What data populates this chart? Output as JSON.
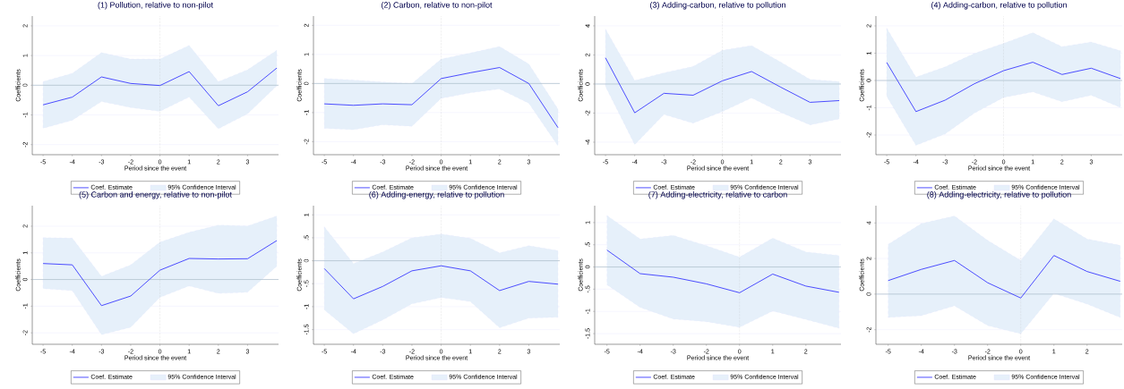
{
  "chart_data": [
    {
      "type": "line",
      "title": "(1) Pollution, relative to non-pilot",
      "xlabel": "Period since the event",
      "ylabel": "Coefficients",
      "categories": [
        "-5",
        "-4",
        "-3",
        "-2",
        "0",
        "1",
        "2",
        "3",
        null
      ],
      "ylim": [
        -2.34,
        2.33
      ],
      "yticks": [
        -2,
        -1,
        0,
        1,
        2
      ],
      "grid": "y",
      "legend": "bottom",
      "ref_lines": [
        {
          "axis": "x",
          "value": "0",
          "color": "#a8a8a8",
          "line_style": "dotted"
        },
        {
          "axis": "y",
          "value": 0,
          "color": "#9fb4c0",
          "line_style": "solid"
        }
      ],
      "series": [
        {
          "name": "Coef. Estimate",
          "color": "#3a3aff",
          "values": [
            -0.66,
            -0.4,
            0.28,
            0.06,
            -0.01,
            0.46,
            -0.69,
            -0.22,
            0.58
          ],
          "lower": [
            -1.45,
            -1.18,
            -0.55,
            -0.75,
            -0.88,
            -0.4,
            -1.47,
            -0.96,
            -0.02
          ],
          "upper": [
            0.12,
            0.4,
            1.1,
            0.88,
            0.88,
            1.34,
            0.12,
            0.52,
            1.18
          ]
        },
        {
          "name": "95% Confidence Interval",
          "type": "area",
          "color": "#e6f0fa",
          "values": [
            null,
            null,
            null,
            null,
            null,
            null,
            null,
            null,
            null
          ]
        }
      ]
    },
    {
      "type": "line",
      "title": "(2) Carbon, relative to non-pilot",
      "xlabel": "Period since the event",
      "ylabel": "Coefficients",
      "categories": [
        "-5",
        "-4",
        "-3",
        "-2",
        "0",
        "1",
        "2",
        "3",
        null
      ],
      "ylim": [
        -2.45,
        2.32
      ],
      "yticks": [
        -2,
        -1,
        0,
        1,
        2
      ],
      "grid": "y",
      "legend": "bottom",
      "ref_lines": [
        {
          "axis": "x",
          "value": "0",
          "color": "#a8a8a8",
          "line_style": "dotted"
        },
        {
          "axis": "y",
          "value": 0,
          "color": "#9fb4c0",
          "line_style": "solid"
        }
      ],
      "series": [
        {
          "name": "Coef. Estimate",
          "color": "#3a3aff",
          "values": [
            -0.7,
            -0.75,
            -0.7,
            -0.73,
            0.17,
            0.37,
            0.55,
            0,
            -1.52
          ],
          "lower": [
            -1.54,
            -1.59,
            -1.42,
            -1.47,
            -0.51,
            -0.32,
            -0.19,
            -0.68,
            -2.15
          ],
          "upper": [
            0.17,
            0.12,
            0.05,
            0.0,
            0.84,
            1.05,
            1.27,
            0.67,
            -0.88
          ]
        },
        {
          "name": "95% Confidence Interval",
          "type": "area",
          "color": "#e6f0fa",
          "values": [
            null,
            null,
            null,
            null,
            null,
            null,
            null,
            null,
            null
          ]
        }
      ]
    },
    {
      "type": "line",
      "title": "(3) Adding-carbon, relative to pollution",
      "xlabel": "Period since the event",
      "ylabel": "Coefficients",
      "categories": [
        "-5",
        "-4",
        "-3",
        "-2",
        "0",
        "1",
        "2",
        "3",
        null
      ],
      "ylim": [
        -4.86,
        4.67
      ],
      "yticks": [
        -4,
        -2,
        0,
        2,
        4
      ],
      "grid": "y",
      "legend": "bottom",
      "ref_lines": [
        {
          "axis": "x",
          "value": "0",
          "color": "#a8a8a8",
          "line_style": "dotted"
        },
        {
          "axis": "y",
          "value": 0,
          "color": "#9fb4c0",
          "line_style": "solid"
        }
      ],
      "series": [
        {
          "name": "Coef. Estimate",
          "color": "#3a3aff",
          "values": [
            1.8,
            -1.98,
            -0.64,
            -0.77,
            0.22,
            0.86,
            -0.22,
            -1.26,
            -1.14
          ],
          "lower": [
            -0.17,
            -4.17,
            -2.1,
            -2.69,
            -1.9,
            -0.96,
            -1.95,
            -2.81,
            -2.4
          ],
          "upper": [
            3.78,
            0.25,
            0.77,
            1.21,
            2.32,
            2.64,
            1.51,
            0.32,
            0.17
          ]
        },
        {
          "name": "95% Confidence Interval",
          "type": "area",
          "color": "#e6f0fa",
          "values": [
            null,
            null,
            null,
            null,
            null,
            null,
            null,
            null,
            null
          ]
        }
      ]
    },
    {
      "type": "line",
      "title": "(4) Adding-carbon, relative to pollution",
      "xlabel": "Period since the event",
      "ylabel": "Coefficients",
      "categories": [
        "-5",
        "-4",
        "-3",
        "-2",
        "0",
        "1",
        "2",
        "3",
        null
      ],
      "ylim": [
        -2.72,
        2.36
      ],
      "yticks": [
        -2,
        -1,
        0,
        1,
        2
      ],
      "grid": "y",
      "legend": "bottom",
      "ref_lines": [
        {
          "axis": "x",
          "value": "0",
          "color": "#a8a8a8",
          "line_style": "dotted"
        },
        {
          "axis": "y",
          "value": 0,
          "color": "#9fb4c0",
          "line_style": "solid"
        }
      ],
      "series": [
        {
          "name": "Coef. Estimate",
          "color": "#3a3aff",
          "values": [
            0.66,
            -1.14,
            -0.72,
            -0.12,
            0.36,
            0.67,
            0.22,
            0.45,
            0.07
          ],
          "lower": [
            -0.58,
            -2.38,
            -1.96,
            -1.2,
            -0.62,
            -0.42,
            -0.78,
            -0.54,
            -0.99
          ],
          "upper": [
            1.92,
            0.12,
            0.5,
            0.99,
            1.36,
            1.75,
            1.24,
            1.41,
            1.09
          ]
        },
        {
          "name": "95% Confidence Interval",
          "type": "area",
          "color": "#e6f0fa",
          "values": [
            null,
            null,
            null,
            null,
            null,
            null,
            null,
            null,
            null
          ]
        }
      ]
    },
    {
      "type": "line",
      "title": "(5) Carbon and energy, relative to non-pilot",
      "xlabel": "Period since the event",
      "ylabel": "Coefficients",
      "categories": [
        "-5",
        "-4",
        "-3",
        "-2",
        "0",
        "1",
        "2",
        "3",
        null
      ],
      "ylim": [
        -2.43,
        2.77
      ],
      "yticks": [
        -2,
        -1,
        0,
        1,
        2
      ],
      "grid": "y",
      "legend": "bottom",
      "ref_lines": [
        {
          "axis": "x",
          "value": "0",
          "color": "#a8a8a8",
          "line_style": "dotted"
        },
        {
          "axis": "y",
          "value": 0,
          "color": "#9fb4c0",
          "line_style": "solid"
        }
      ],
      "series": [
        {
          "name": "Coef. Estimate",
          "color": "#3a3aff",
          "values": [
            0.6,
            0.55,
            -0.98,
            -0.62,
            0.35,
            0.79,
            0.77,
            0.78,
            1.46
          ],
          "lower": [
            -0.34,
            -0.42,
            -2.07,
            -1.79,
            -0.67,
            -0.24,
            -0.52,
            -0.48,
            0.5
          ],
          "upper": [
            1.57,
            1.55,
            0.12,
            0.55,
            1.4,
            1.77,
            2.04,
            2.01,
            2.38
          ]
        },
        {
          "name": "95% Confidence Interval",
          "type": "area",
          "color": "#e6f0fa",
          "values": [
            null,
            null,
            null,
            null,
            null,
            null,
            null,
            null,
            null
          ]
        }
      ]
    },
    {
      "type": "line",
      "title": "(6) Adding-energy, relative to pollution",
      "xlabel": "Period since the event",
      "ylabel": "Coefficients",
      "categories": [
        "-5",
        "-4",
        "-3",
        "-2",
        "0",
        "1",
        "2",
        "3",
        null
      ],
      "ylim": [
        -1.82,
        1.2
      ],
      "yticks": [
        {
          "value": -1.5,
          "label": "-1.5"
        },
        -1,
        {
          "value": -0.5,
          "label": "-.5"
        },
        0,
        {
          "value": 0.5,
          "label": ".5"
        },
        1
      ],
      "grid": "y",
      "legend": "bottom",
      "ref_lines": [
        {
          "axis": "x",
          "value": "0",
          "color": "#a8a8a8",
          "line_style": "dotted"
        },
        {
          "axis": "y",
          "value": 0,
          "color": "#9fb4c0",
          "line_style": "solid"
        }
      ],
      "series": [
        {
          "name": "Coef. Estimate",
          "color": "#3a3aff",
          "values": [
            -0.17,
            -0.83,
            -0.56,
            -0.22,
            -0.11,
            -0.22,
            -0.65,
            -0.45,
            -0.51
          ],
          "lower": [
            -1.07,
            -1.59,
            -1.29,
            -0.94,
            -0.8,
            -0.89,
            -1.46,
            -1.25,
            -1.23
          ],
          "upper": [
            0.74,
            -0.06,
            0.19,
            0.5,
            0.58,
            0.49,
            0.17,
            0.33,
            0.22
          ]
        },
        {
          "name": "95% Confidence Interval",
          "type": "area",
          "color": "#e6f0fa",
          "values": [
            null,
            null,
            null,
            null,
            null,
            null,
            null,
            null,
            null
          ]
        }
      ]
    },
    {
      "type": "line",
      "title": "(7) Adding-electricity, relative to carbon",
      "xlabel": "Period since the event",
      "ylabel": "Coefficients",
      "categories": [
        "-5",
        "-4",
        "-3",
        "-2",
        "0",
        "1",
        "2",
        null
      ],
      "ylim": [
        -1.74,
        1.38
      ],
      "yticks": [
        {
          "value": -1.5,
          "label": "-1.5"
        },
        -1,
        {
          "value": -0.5,
          "label": "-.5"
        },
        0,
        {
          "value": 0.5,
          "label": ".5"
        },
        1
      ],
      "grid": "y",
      "legend": "bottom",
      "ref_lines": [
        {
          "axis": "x",
          "value": "0",
          "color": "#a8a8a8",
          "line_style": "dotted"
        },
        {
          "axis": "y",
          "value": 0,
          "color": "#9fb4c0",
          "line_style": "solid"
        }
      ],
      "series": [
        {
          "name": "Coef. Estimate",
          "color": "#3a3aff",
          "values": [
            0.38,
            -0.15,
            -0.23,
            -0.38,
            -0.58,
            -0.16,
            -0.43,
            -0.57
          ],
          "lower": [
            -0.4,
            -0.91,
            -1.17,
            -1.23,
            -1.36,
            -0.99,
            -1.18,
            -1.38
          ],
          "upper": [
            1.16,
            0.63,
            0.71,
            0.48,
            0.22,
            0.65,
            0.34,
            0.26
          ]
        },
        {
          "name": "95% Confidence Interval",
          "type": "area",
          "color": "#e6f0fa",
          "values": [
            null,
            null,
            null,
            null,
            null,
            null,
            null,
            null
          ]
        }
      ]
    },
    {
      "type": "line",
      "title": "(8) Adding-electricity, relative to pollution",
      "xlabel": "Period since the event",
      "ylabel": "Coefficients",
      "categories": [
        "-5",
        "-4",
        "-3",
        "-2",
        "0",
        "1",
        "2",
        null
      ],
      "ylim": [
        -2.82,
        4.97
      ],
      "yticks": [
        -2,
        0,
        2,
        4
      ],
      "grid": "y",
      "legend": "bottom",
      "ref_lines": [
        {
          "axis": "x",
          "value": "0",
          "color": "#a8a8a8",
          "line_style": "dotted"
        },
        {
          "axis": "y",
          "value": 0,
          "color": "#9fb4c0",
          "line_style": "solid"
        }
      ],
      "series": [
        {
          "name": "Coef. Estimate",
          "color": "#3a3aff",
          "values": [
            0.76,
            1.39,
            1.89,
            0.64,
            -0.22,
            2.17,
            1.27,
            0.72
          ],
          "lower": [
            -1.31,
            -1.21,
            -0.66,
            -1.77,
            -2.23,
            0.04,
            -0.56,
            -1.31
          ],
          "upper": [
            2.8,
            3.96,
            4.39,
            3.02,
            1.89,
            4.23,
            3.1,
            2.74
          ]
        },
        {
          "name": "95% Confidence Interval",
          "type": "area",
          "color": "#e6f0fa",
          "values": [
            null,
            null,
            null,
            null,
            null,
            null,
            null,
            null
          ]
        }
      ]
    }
  ]
}
